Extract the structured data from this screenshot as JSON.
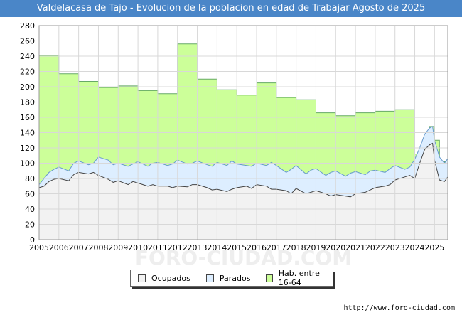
{
  "chart_data": {
    "type": "area",
    "title": "Valdelacasa de Tajo - Evolucion de la poblacion en edad de Trabajar Agosto de 2025",
    "xlabel": "",
    "ylabel": "",
    "ylim": [
      0,
      280
    ],
    "yticks": [
      0,
      20,
      40,
      60,
      80,
      100,
      120,
      140,
      160,
      180,
      200,
      220,
      240,
      260,
      280
    ],
    "xlim": [
      2005,
      2025.67
    ],
    "xticks": [
      "2005",
      "2006",
      "2007",
      "2008",
      "2009",
      "2010",
      "2011",
      "2012",
      "2013",
      "2014",
      "2015",
      "2016",
      "2017",
      "2018",
      "2019",
      "2020",
      "2021",
      "2022",
      "2023",
      "2024",
      "2025"
    ],
    "grid": true,
    "legend_position": "bottom",
    "source": "http://www.foro-ciudad.com",
    "watermark": "FORO-CIUDAD.COM",
    "series": [
      {
        "name": "Hab. entre 16-64",
        "color": "#ccff99",
        "line": "#66aa66",
        "step": true,
        "x": [
          2005,
          2006,
          2007,
          2008,
          2009,
          2010,
          2011,
          2012,
          2013,
          2014,
          2015,
          2016,
          2017,
          2018,
          2019,
          2020,
          2021,
          2022,
          2023,
          2024,
          2024.17,
          2024.5,
          2024.75,
          2025,
          2025.25,
          2025.5,
          2025.6
        ],
        "values": [
          241,
          217,
          207,
          199,
          201,
          195,
          191,
          256,
          210,
          196,
          189,
          205,
          186,
          183,
          166,
          162,
          166,
          168,
          170,
          112,
          115,
          138,
          148,
          130,
          100,
          102,
          104
        ]
      },
      {
        "name": "Parados",
        "color": "#ddeeff",
        "line": "#6699cc",
        "step": false,
        "x": [
          2005,
          2005.25,
          2005.5,
          2005.75,
          2006,
          2006.5,
          2006.75,
          2007,
          2007.5,
          2007.75,
          2008,
          2008.5,
          2008.75,
          2009,
          2009.5,
          2009.75,
          2010,
          2010.5,
          2010.75,
          2011,
          2011.5,
          2011.75,
          2012,
          2012.5,
          2012.75,
          2013,
          2013.5,
          2013.75,
          2014,
          2014.5,
          2014.75,
          2015,
          2015.5,
          2015.75,
          2016,
          2016.5,
          2016.75,
          2017,
          2017.5,
          2017.75,
          2018,
          2018.5,
          2018.75,
          2019,
          2019.5,
          2019.75,
          2020,
          2020.5,
          2020.75,
          2021,
          2021.5,
          2021.75,
          2022,
          2022.5,
          2022.75,
          2023,
          2023.5,
          2023.75,
          2024,
          2024.25,
          2024.5,
          2024.75,
          2024.9,
          2025,
          2025.25,
          2025.5,
          2025.67
        ],
        "values": [
          72,
          80,
          88,
          92,
          95,
          90,
          100,
          103,
          98,
          100,
          108,
          104,
          98,
          100,
          96,
          99,
          102,
          96,
          100,
          101,
          97,
          99,
          104,
          99,
          100,
          103,
          98,
          96,
          101,
          97,
          103,
          99,
          97,
          96,
          100,
          97,
          101,
          97,
          88,
          92,
          97,
          86,
          91,
          93,
          84,
          88,
          90,
          83,
          87,
          89,
          85,
          90,
          91,
          88,
          93,
          97,
          92,
          95,
          105,
          120,
          138,
          146,
          148,
          130,
          108,
          100,
          106
        ]
      },
      {
        "name": "Ocupados",
        "color": "#f2f2f2",
        "line": "#444444",
        "step": false,
        "x": [
          2005,
          2005.25,
          2005.5,
          2005.75,
          2006,
          2006.5,
          2006.75,
          2007,
          2007.5,
          2007.75,
          2008,
          2008.5,
          2008.75,
          2009,
          2009.5,
          2009.75,
          2010,
          2010.5,
          2010.75,
          2011,
          2011.5,
          2011.75,
          2012,
          2012.5,
          2012.75,
          2013,
          2013.5,
          2013.75,
          2014,
          2014.5,
          2014.75,
          2015,
          2015.5,
          2015.75,
          2016,
          2016.5,
          2016.75,
          2017,
          2017.5,
          2017.75,
          2018,
          2018.5,
          2018.75,
          2019,
          2019.5,
          2019.75,
          2020,
          2020.5,
          2020.75,
          2021,
          2021.5,
          2021.75,
          2022,
          2022.5,
          2022.75,
          2023,
          2023.5,
          2023.75,
          2024,
          2024.25,
          2024.5,
          2024.75,
          2024.9,
          2025,
          2025.25,
          2025.5,
          2025.67
        ],
        "values": [
          68,
          70,
          76,
          79,
          80,
          77,
          85,
          88,
          86,
          88,
          84,
          79,
          75,
          77,
          72,
          76,
          74,
          70,
          72,
          70,
          70,
          68,
          70,
          69,
          72,
          72,
          68,
          65,
          66,
          63,
          66,
          68,
          70,
          67,
          72,
          70,
          66,
          66,
          64,
          60,
          67,
          60,
          62,
          64,
          60,
          57,
          59,
          57,
          56,
          60,
          62,
          65,
          68,
          70,
          72,
          78,
          82,
          84,
          80,
          100,
          118,
          124,
          126,
          104,
          78,
          76,
          82
        ]
      }
    ],
    "legend": [
      "Ocupados",
      "Parados",
      "Hab. entre 16-64"
    ]
  }
}
